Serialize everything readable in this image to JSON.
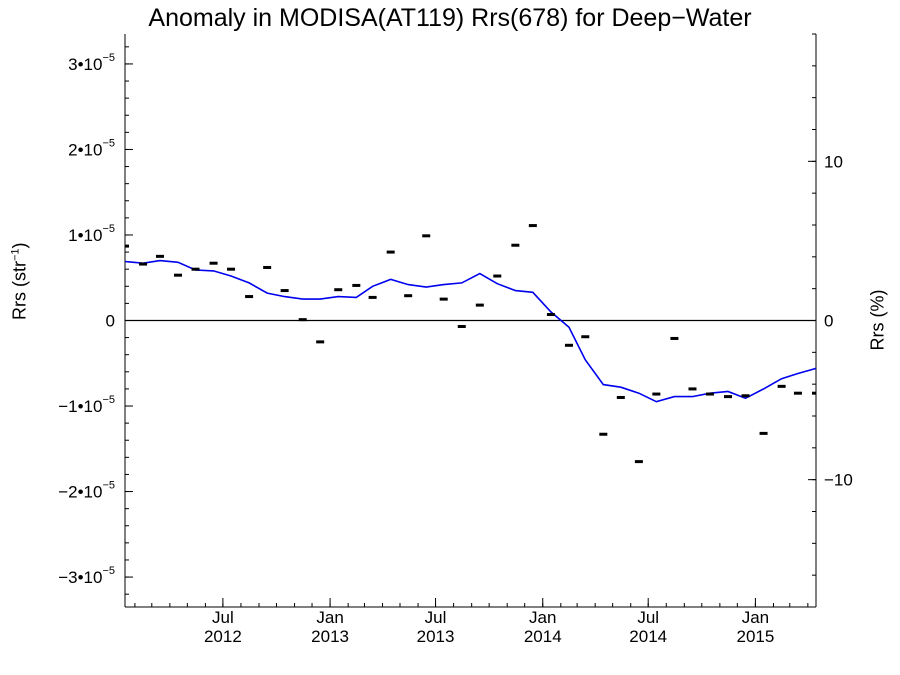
{
  "chart_data": {
    "type": "line",
    "title": "Anomaly in MODISA(AT119) Rrs(678) for Deep−Water",
    "ylabel_left": "Rrs (str⁻¹)",
    "ylabel_right": "Rrs (%)",
    "xlim": [
      "2012-01-15",
      "2015-04-15"
    ],
    "ylim": [
      -3.35e-05,
      3.35e-05
    ],
    "ylim_right": [
      -18,
      18
    ],
    "y_ticks": [
      {
        "value": 3e-05,
        "label": "3•10",
        "exp": "−5"
      },
      {
        "value": 2e-05,
        "label": "2•10",
        "exp": "−5"
      },
      {
        "value": 1e-05,
        "label": "1•10",
        "exp": "−5"
      },
      {
        "value": 0,
        "label": "0",
        "exp": ""
      },
      {
        "value": -1e-05,
        "label": "−1•10",
        "exp": "−5"
      },
      {
        "value": -2e-05,
        "label": "−2•10",
        "exp": "−5"
      },
      {
        "value": -3e-05,
        "label": "−3•10",
        "exp": "−5"
      }
    ],
    "y_ticks_right": [
      {
        "value": 10,
        "label": "10"
      },
      {
        "value": 0,
        "label": "0"
      },
      {
        "value": -10,
        "label": "−10"
      }
    ],
    "x_ticks": [
      {
        "date": "2012-07-01",
        "month": "Jul",
        "year": "2012"
      },
      {
        "date": "2013-01-01",
        "month": "Jan",
        "year": "2013"
      },
      {
        "date": "2013-07-01",
        "month": "Jul",
        "year": "2013"
      },
      {
        "date": "2014-01-01",
        "month": "Jan",
        "year": "2014"
      },
      {
        "date": "2014-07-01",
        "month": "Jul",
        "year": "2014"
      },
      {
        "date": "2015-01-01",
        "month": "Jan",
        "year": "2015"
      }
    ],
    "zero_line": true,
    "series": [
      {
        "type": "points",
        "color": "#000000",
        "x": [
          "2012-01-15",
          "2012-02-15",
          "2012-03-15",
          "2012-04-15",
          "2012-05-15",
          "2012-06-15",
          "2012-07-15",
          "2012-08-15",
          "2012-09-15",
          "2012-10-15",
          "2012-11-15",
          "2012-12-15",
          "2013-01-15",
          "2013-02-15",
          "2013-03-15",
          "2013-04-15",
          "2013-05-15",
          "2013-06-15",
          "2013-07-15",
          "2013-08-15",
          "2013-09-15",
          "2013-10-15",
          "2013-11-15",
          "2013-12-15",
          "2014-01-15",
          "2014-02-15",
          "2014-03-15",
          "2014-04-15",
          "2014-05-15",
          "2014-06-15",
          "2014-07-15",
          "2014-08-15",
          "2014-09-15",
          "2014-10-15",
          "2014-11-15",
          "2014-12-15",
          "2015-01-15",
          "2015-02-15",
          "2015-03-15",
          "2015-04-15"
        ],
        "y": [
          8.7e-06,
          6.6e-06,
          7.5e-06,
          5.3e-06,
          6e-06,
          6.7e-06,
          6e-06,
          2.8e-06,
          6.2e-06,
          3.5e-06,
          1e-07,
          -2.5e-06,
          3.6e-06,
          4.1e-06,
          2.7e-06,
          8e-06,
          2.9e-06,
          9.9e-06,
          2.5e-06,
          -7e-07,
          1.8e-06,
          5.2e-06,
          8.8e-06,
          1.11e-05,
          7e-07,
          -2.9e-06,
          -1.9e-06,
          -1.33e-05,
          -9e-06,
          -1.65e-05,
          -8.6e-06,
          -2.1e-06,
          -8e-06,
          -8.6e-06,
          -8.9e-06,
          -8.8e-06,
          -1.32e-05,
          -7.7e-06,
          -8.5e-06,
          -8.5e-06
        ]
      },
      {
        "type": "line",
        "color": "#0000ee",
        "x": [
          "2012-01-15",
          "2012-02-15",
          "2012-03-15",
          "2012-04-15",
          "2012-05-15",
          "2012-06-15",
          "2012-07-15",
          "2012-08-15",
          "2012-09-15",
          "2012-10-15",
          "2012-11-15",
          "2012-12-15",
          "2013-01-15",
          "2013-02-15",
          "2013-03-15",
          "2013-04-15",
          "2013-05-15",
          "2013-06-15",
          "2013-07-15",
          "2013-08-15",
          "2013-09-15",
          "2013-10-15",
          "2013-11-15",
          "2013-12-15",
          "2014-01-15",
          "2014-02-15",
          "2014-03-15",
          "2014-04-15",
          "2014-05-15",
          "2014-06-15",
          "2014-07-15",
          "2014-08-15",
          "2014-09-15",
          "2014-10-15",
          "2014-11-15",
          "2014-12-15",
          "2015-01-15",
          "2015-02-15",
          "2015-03-15",
          "2015-04-15"
        ],
        "y": [
          6.9e-06,
          6.7e-06,
          7e-06,
          6.8e-06,
          5.9e-06,
          5.8e-06,
          5.2e-06,
          4.4e-06,
          3.2e-06,
          2.8e-06,
          2.5e-06,
          2.5e-06,
          2.8e-06,
          2.7e-06,
          4e-06,
          4.8e-06,
          4.2e-06,
          3.9e-06,
          4.2e-06,
          4.4e-06,
          5.5e-06,
          4.3e-06,
          3.5e-06,
          3.3e-06,
          1e-06,
          -8e-07,
          -4.6e-06,
          -7.5e-06,
          -7.8e-06,
          -8.5e-06,
          -9.5e-06,
          -8.9e-06,
          -8.9e-06,
          -8.5e-06,
          -8.3e-06,
          -9.1e-06,
          -8e-06,
          -6.8e-06,
          -6.2e-06,
          -5.6e-06
        ]
      }
    ]
  }
}
